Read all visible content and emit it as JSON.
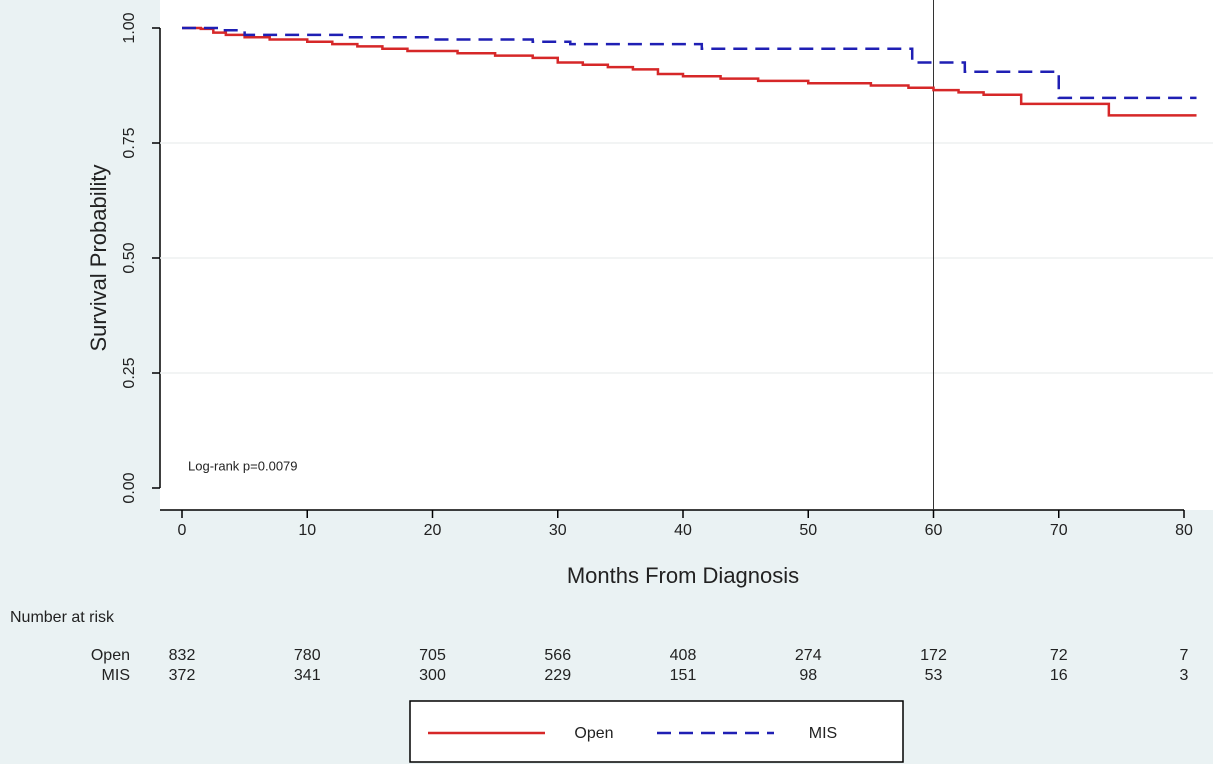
{
  "chart_data": {
    "type": "step",
    "xlabel": "Months From Diagnosis",
    "ylabel": "Survival Probability",
    "annotation": "Log-rank p=0.0079",
    "xlim": [
      0,
      80
    ],
    "xticks": [
      0,
      10,
      20,
      30,
      40,
      50,
      60,
      70,
      80
    ],
    "ylim": [
      0,
      1
    ],
    "yticks": [
      {
        "value": 0,
        "label": "0.00"
      },
      {
        "value": 0.25,
        "label": "0.25"
      },
      {
        "value": 0.5,
        "label": "0.50"
      },
      {
        "value": 0.75,
        "label": "0.75"
      },
      {
        "value": 1,
        "label": "1.00"
      }
    ],
    "grid": true,
    "vline": 60,
    "series": [
      {
        "name": "Open",
        "color": "#d62728",
        "dash": false,
        "x": [
          0,
          1.5,
          2.5,
          3.5,
          5,
          7,
          10,
          12,
          14,
          16,
          18,
          22,
          25,
          28,
          30,
          32,
          34,
          36,
          38,
          40,
          43,
          46,
          50,
          55,
          58,
          60,
          62,
          64,
          67,
          74,
          81
        ],
        "values": [
          1,
          0.998,
          0.99,
          0.985,
          0.98,
          0.975,
          0.97,
          0.965,
          0.96,
          0.955,
          0.95,
          0.945,
          0.94,
          0.935,
          0.925,
          0.92,
          0.915,
          0.91,
          0.9,
          0.895,
          0.89,
          0.885,
          0.88,
          0.875,
          0.87,
          0.865,
          0.86,
          0.855,
          0.835,
          0.81,
          0.81
        ]
      },
      {
        "name": "MIS",
        "color": "#1f1fb4",
        "dash": true,
        "x": [
          0,
          3,
          5,
          13,
          20,
          28,
          31,
          41.5,
          58.3,
          62.5,
          70,
          81
        ],
        "values": [
          1,
          0.995,
          0.985,
          0.98,
          0.975,
          0.97,
          0.965,
          0.955,
          0.925,
          0.905,
          0.848,
          0.848
        ]
      }
    ],
    "risk_table": {
      "title": "Number at risk",
      "rows": [
        {
          "label": "Open",
          "values": [
            832,
            780,
            705,
            566,
            408,
            274,
            172,
            72,
            7
          ]
        },
        {
          "label": "MIS",
          "values": [
            372,
            341,
            300,
            229,
            151,
            98,
            53,
            16,
            3
          ]
        }
      ]
    }
  }
}
